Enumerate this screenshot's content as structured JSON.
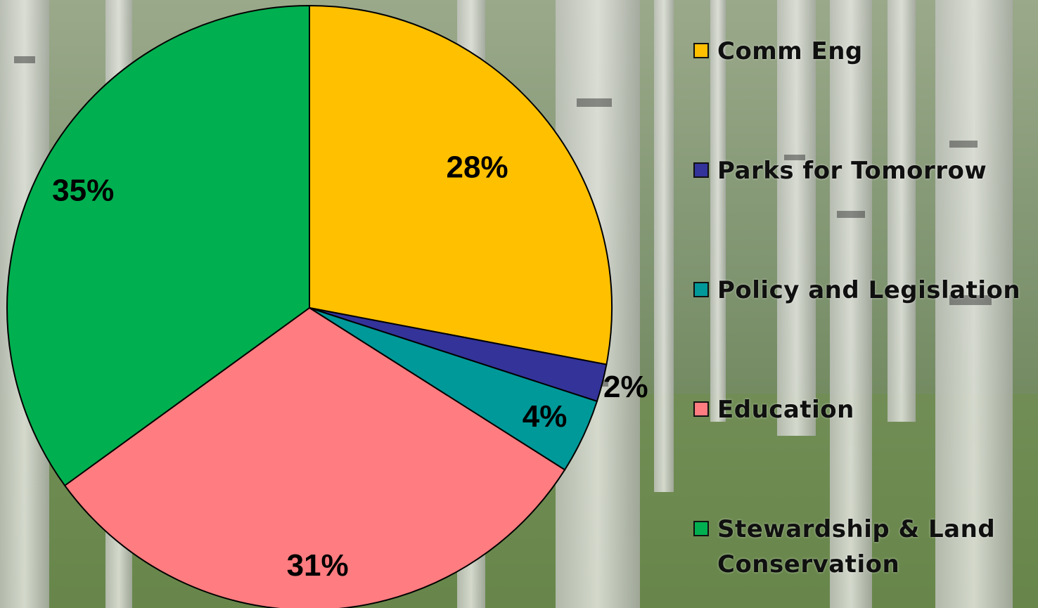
{
  "colors": {
    "slice_outline": "#000000",
    "background_tint": "#6a7d5a"
  },
  "chart_data": {
    "type": "pie",
    "title": "",
    "start": "top",
    "direction": "clockwise",
    "legend_placement": "right",
    "slices": [
      {
        "name": "Comm Eng",
        "value": 28,
        "label": "28%",
        "color": "#FFC000"
      },
      {
        "name": "Parks for Tomorrow",
        "value": 2,
        "label": "2%",
        "color": "#33339A"
      },
      {
        "name": "Policy and Legislation",
        "value": 4,
        "label": "4%",
        "color": "#009999"
      },
      {
        "name": "Education",
        "value": 31,
        "label": "31%",
        "color": "#FF7C80"
      },
      {
        "name": "Stewardship & Land Conservation",
        "value": 35,
        "label": "35%",
        "color": "#00B050"
      }
    ]
  }
}
